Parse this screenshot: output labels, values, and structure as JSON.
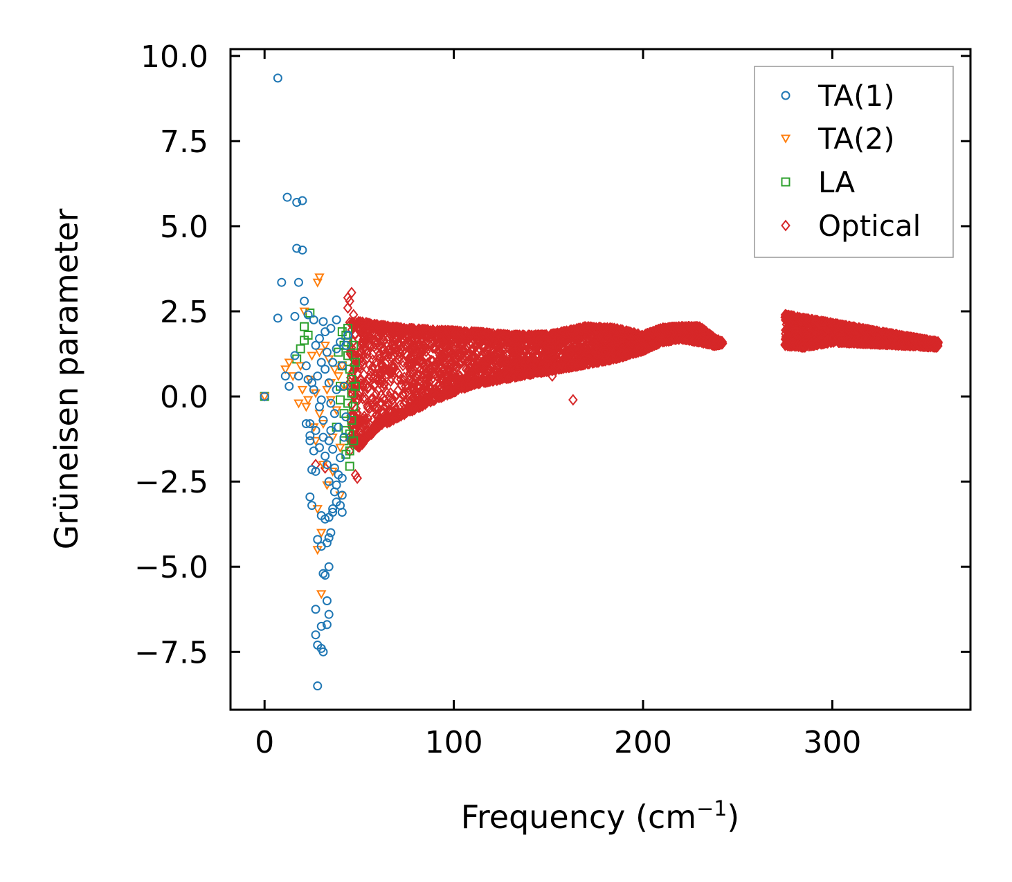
{
  "chart_data": {
    "type": "scatter",
    "title": "",
    "xlabel_base": "Frequency (cm",
    "xlabel_sup": "−1",
    "xlabel_close": ")",
    "ylabel": "Grüneisen parameter",
    "xlim": [
      -18,
      373
    ],
    "ylim": [
      -9.2,
      10.2
    ],
    "xticks": [
      0,
      100,
      200,
      300
    ],
    "xtick_labels": [
      "0",
      "100",
      "200",
      "300"
    ],
    "yticks": [
      -7.5,
      -5.0,
      -2.5,
      0.0,
      2.5,
      5.0,
      7.5,
      10.0
    ],
    "ytick_labels": [
      "−7.5",
      "−5.0",
      "−2.5",
      "0.0",
      "2.5",
      "5.0",
      "7.5",
      "10.0"
    ],
    "grid": false,
    "legend_position": "top-right",
    "series": [
      {
        "name": "TA(1)",
        "marker": "circle",
        "color": "#1f77b4",
        "points": [
          [
            0,
            0
          ],
          [
            7,
            9.35
          ],
          [
            7,
            2.3
          ],
          [
            9,
            3.35
          ],
          [
            12,
            5.85
          ],
          [
            17,
            5.7
          ],
          [
            20,
            5.75
          ],
          [
            17,
            4.35
          ],
          [
            20,
            4.3
          ],
          [
            18,
            3.35
          ],
          [
            16,
            2.35
          ],
          [
            21,
            2.8
          ],
          [
            23,
            2.4
          ],
          [
            26,
            2.25
          ],
          [
            31,
            2.2
          ],
          [
            32,
            1.9
          ],
          [
            35,
            2.0
          ],
          [
            38,
            2.25
          ],
          [
            11,
            0.6
          ],
          [
            13,
            0.3
          ],
          [
            16,
            1.2
          ],
          [
            18,
            0.6
          ],
          [
            22,
            0.9
          ],
          [
            24,
            -0.8
          ],
          [
            22,
            -0.8
          ],
          [
            24,
            -1.15
          ],
          [
            24,
            -1.3
          ],
          [
            26,
            -1.6
          ],
          [
            25,
            -2.15
          ],
          [
            27,
            -2.2
          ],
          [
            29,
            -1.5
          ],
          [
            31,
            -1.2
          ],
          [
            32,
            -1.75
          ],
          [
            34,
            -2.5
          ],
          [
            33,
            -2.0
          ],
          [
            36,
            -1.55
          ],
          [
            37,
            -2.1
          ],
          [
            38,
            -2.6
          ],
          [
            24,
            -2.95
          ],
          [
            25,
            -3.2
          ],
          [
            30,
            -3.5
          ],
          [
            32,
            -3.6
          ],
          [
            34,
            -3.55
          ],
          [
            36,
            -3.4
          ],
          [
            38,
            -3.1
          ],
          [
            35,
            -4.0
          ],
          [
            34,
            -4.15
          ],
          [
            33,
            -4.3
          ],
          [
            28,
            -4.2
          ],
          [
            30,
            -4.4
          ],
          [
            31,
            -5.2
          ],
          [
            32,
            -5.25
          ],
          [
            34,
            -5.0
          ],
          [
            33,
            -6.0
          ],
          [
            34,
            -6.4
          ],
          [
            27,
            -6.25
          ],
          [
            30,
            -6.75
          ],
          [
            33,
            -6.7
          ],
          [
            27,
            -7.0
          ],
          [
            28,
            -7.3
          ],
          [
            30,
            -7.4
          ],
          [
            31,
            -7.5
          ],
          [
            28,
            -8.5
          ],
          [
            40,
            -3.2
          ],
          [
            41,
            -3.4
          ],
          [
            41,
            -2.9
          ],
          [
            40,
            -1.8
          ],
          [
            39,
            -0.9
          ],
          [
            37,
            -0.5
          ],
          [
            35,
            -0.2
          ],
          [
            34,
            0.4
          ],
          [
            36,
            1.0
          ],
          [
            38,
            1.4
          ],
          [
            40,
            1.6
          ],
          [
            33,
            1.3
          ],
          [
            30,
            1.0
          ],
          [
            28,
            0.6
          ],
          [
            26,
            0.2
          ],
          [
            29,
            -0.3
          ],
          [
            31,
            -0.7
          ],
          [
            42,
            -1.2
          ],
          [
            43,
            -0.6
          ],
          [
            42,
            0.3
          ],
          [
            41,
            0.9
          ],
          [
            43,
            1.5
          ],
          [
            44,
            1.8
          ],
          [
            39,
            -2.3
          ],
          [
            37,
            -2.8
          ],
          [
            36,
            -3.3
          ],
          [
            41,
            -2.4
          ],
          [
            29,
            1.7
          ],
          [
            27,
            1.5
          ],
          [
            25,
            0.4
          ],
          [
            23,
            0.5
          ],
          [
            27,
            -1.0
          ],
          [
            35,
            -1.0
          ],
          [
            38,
            0.2
          ],
          [
            32,
            0.8
          ],
          [
            30,
            -0.1
          ],
          [
            34,
            -1.3
          ]
        ]
      },
      {
        "name": "TA(2)",
        "marker": "triangle-down",
        "color": "#ff7f0e",
        "points": [
          [
            0,
            0
          ],
          [
            28,
            3.35
          ],
          [
            29,
            3.5
          ],
          [
            21,
            2.5
          ],
          [
            13,
            1.0
          ],
          [
            11,
            0.8
          ],
          [
            15,
            0.6
          ],
          [
            18,
            -0.2
          ],
          [
            20,
            0.2
          ],
          [
            22,
            -0.3
          ],
          [
            24,
            0.5
          ],
          [
            26,
            -0.9
          ],
          [
            27,
            -1.3
          ],
          [
            29,
            -0.5
          ],
          [
            31,
            -0.8
          ],
          [
            33,
            0.2
          ],
          [
            35,
            0.4
          ],
          [
            36,
            -1.2
          ],
          [
            28,
            -3.3
          ],
          [
            30,
            -4.0
          ],
          [
            28,
            -4.5
          ],
          [
            30,
            -5.8
          ],
          [
            32,
            1.5
          ],
          [
            34,
            1.1
          ],
          [
            37,
            0.8
          ],
          [
            38,
            -0.4
          ],
          [
            39,
            0.6
          ],
          [
            40,
            -1.5
          ],
          [
            41,
            0.9
          ],
          [
            42,
            0.3
          ],
          [
            25,
            1.2
          ],
          [
            23,
            -0.1
          ],
          [
            19,
            0.9
          ],
          [
            31,
            -2.0
          ],
          [
            33,
            -2.6
          ],
          [
            36,
            -2.2
          ],
          [
            40,
            -2.9
          ],
          [
            27,
            0.1
          ],
          [
            29,
            1.3
          ],
          [
            35,
            -0.1
          ]
        ]
      },
      {
        "name": "LA",
        "marker": "square",
        "color": "#2ca02c",
        "points": [
          [
            0,
            0
          ],
          [
            24,
            2.45
          ],
          [
            21,
            2.05
          ],
          [
            21,
            1.65
          ],
          [
            19,
            1.4
          ],
          [
            17,
            1.1
          ],
          [
            23,
            1.8
          ],
          [
            41,
            1.9
          ],
          [
            43,
            1.8
          ],
          [
            44,
            2.0
          ],
          [
            42,
            1.5
          ],
          [
            44,
            1.2
          ],
          [
            45,
            0.8
          ],
          [
            46,
            0.5
          ],
          [
            46,
            0.1
          ],
          [
            47,
            -0.3
          ],
          [
            46,
            -0.7
          ],
          [
            45,
            -1.1
          ],
          [
            45,
            -1.6
          ],
          [
            45,
            -2.05
          ],
          [
            43,
            -1.0
          ],
          [
            42,
            -0.5
          ],
          [
            40,
            0.3
          ],
          [
            41,
            0.9
          ],
          [
            39,
            1.3
          ],
          [
            43,
            -1.7
          ],
          [
            44,
            -0.2
          ],
          [
            47,
            1.5
          ],
          [
            48,
            1.0
          ],
          [
            48,
            0.3
          ],
          [
            47,
            -1.3
          ],
          [
            44,
            1.6
          ],
          [
            42,
            -1.3
          ],
          [
            38,
            -0.9
          ],
          [
            40,
            -0.1
          ]
        ]
      },
      {
        "name": "Optical",
        "marker": "diamond",
        "color": "#d62728",
        "band": [
          [
            45,
            -1.3,
            2.2
          ],
          [
            50,
            -1.5,
            2.2
          ],
          [
            60,
            -0.9,
            2.1
          ],
          [
            75,
            -0.5,
            2.0
          ],
          [
            90,
            -0.1,
            1.95
          ],
          [
            110,
            0.35,
            1.9
          ],
          [
            130,
            0.55,
            1.8
          ],
          [
            150,
            0.75,
            1.8
          ],
          [
            170,
            0.95,
            2.05
          ],
          [
            185,
            1.1,
            2.0
          ],
          [
            200,
            1.35,
            1.8
          ],
          [
            210,
            1.6,
            2.0
          ],
          [
            220,
            1.7,
            2.05
          ],
          [
            230,
            1.6,
            2.05
          ],
          [
            238,
            1.5,
            1.7
          ],
          [
            242,
            1.55,
            1.6
          ]
        ],
        "band2": [
          [
            275,
            1.5,
            2.4
          ],
          [
            285,
            1.45,
            2.3
          ],
          [
            300,
            1.6,
            2.15
          ],
          [
            320,
            1.55,
            1.95
          ],
          [
            340,
            1.5,
            1.75
          ],
          [
            356,
            1.45,
            1.6
          ]
        ],
        "points": [
          [
            44,
            2.9
          ],
          [
            45,
            2.8
          ],
          [
            46,
            3.05
          ],
          [
            44,
            2.6
          ],
          [
            47,
            2.4
          ],
          [
            45,
            -1.6
          ],
          [
            48,
            -2.3
          ],
          [
            49,
            -2.4
          ],
          [
            32,
            -2.1
          ],
          [
            27,
            -2.0
          ],
          [
            163,
            -0.1
          ],
          [
            152,
            0.6
          ],
          [
            140,
            0.7
          ],
          [
            55,
            -1.1
          ]
        ]
      }
    ]
  }
}
